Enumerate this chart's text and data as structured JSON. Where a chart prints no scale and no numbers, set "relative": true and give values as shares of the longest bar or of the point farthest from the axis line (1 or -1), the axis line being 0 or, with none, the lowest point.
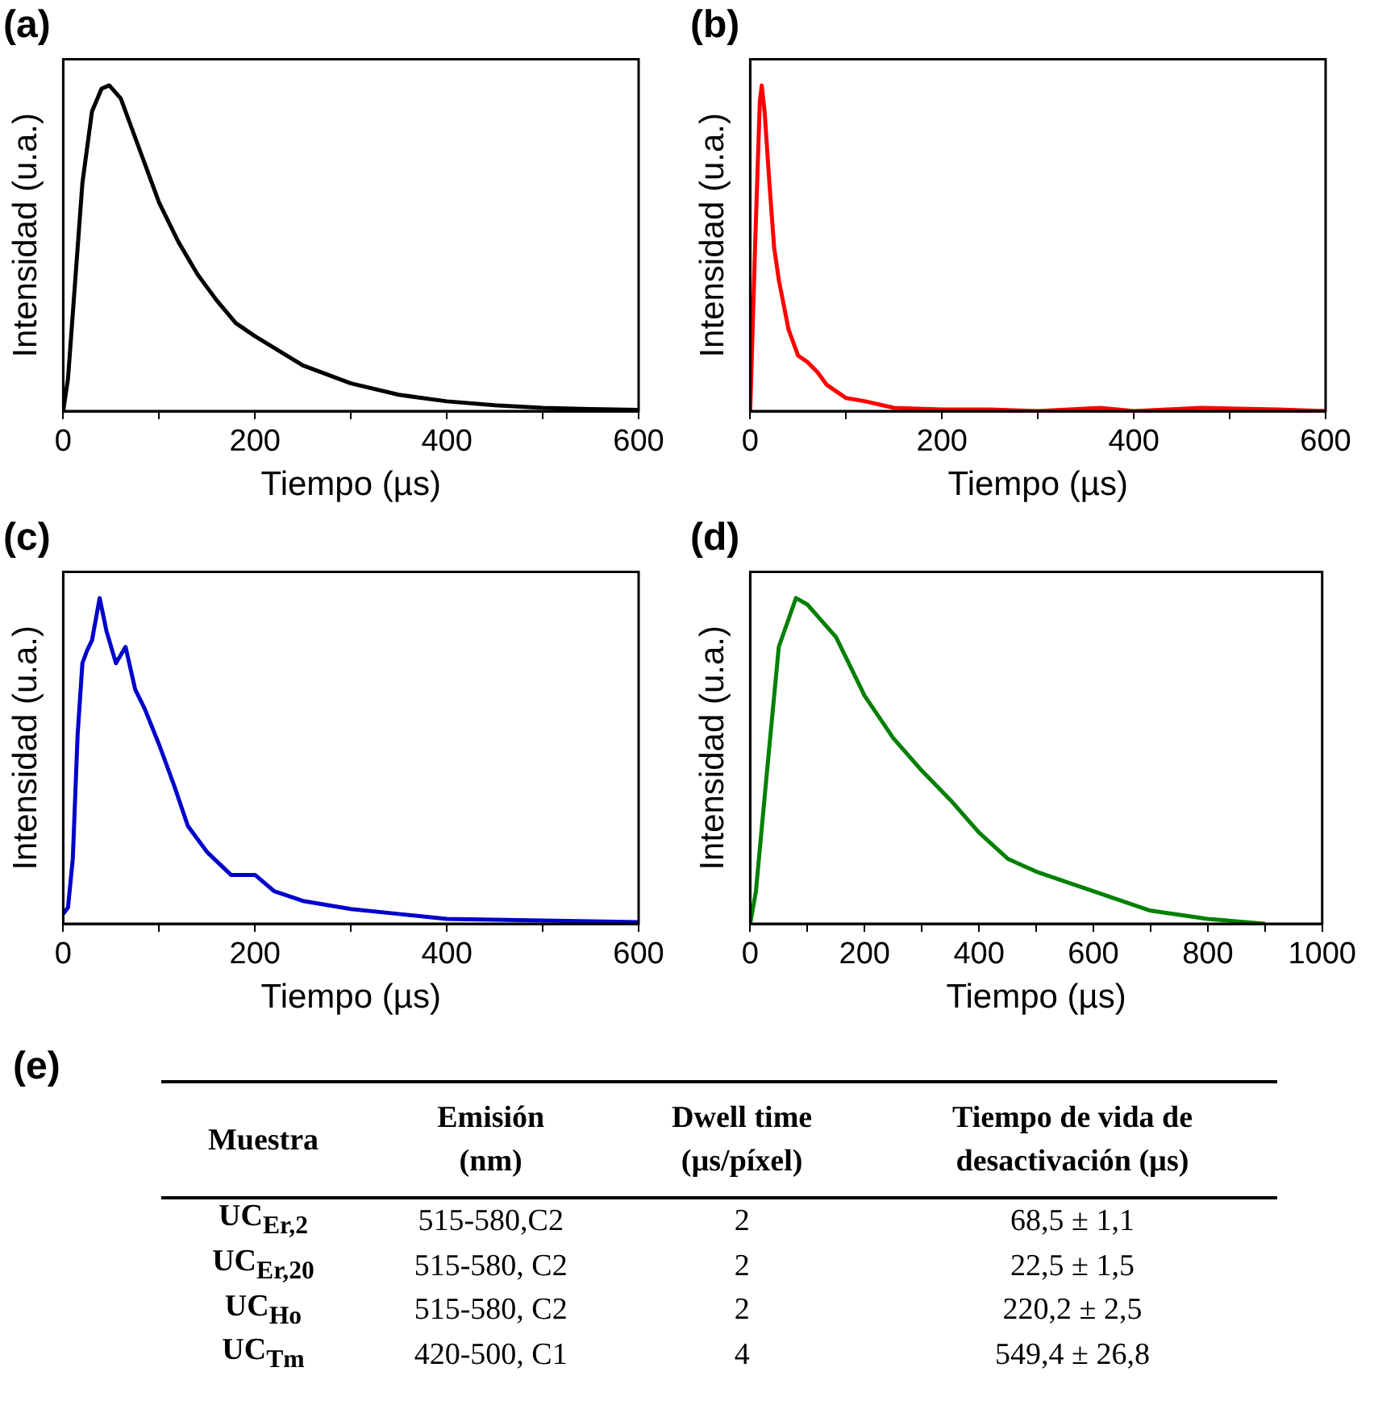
{
  "chart_data": [
    {
      "type": "line",
      "title": "(a)",
      "xlabel": "Tiempo (µs)",
      "ylabel": "Intensidad (u.a.)",
      "relative": true,
      "xlim": [
        0,
        600
      ],
      "xticks": [
        0,
        {
          "value": 100,
          "label": null
        },
        200,
        {
          "value": 300,
          "label": null
        },
        400,
        {
          "value": 500,
          "label": null
        },
        600
      ],
      "marker": "none",
      "grid": false,
      "legend": false,
      "series": [
        {
          "color": "#000000",
          "x": [
            0,
            5,
            10,
            20,
            30,
            40,
            48,
            60,
            80,
            100,
            120,
            140,
            160,
            180,
            200,
            250,
            300,
            350,
            400,
            450,
            500,
            550,
            600
          ],
          "values": [
            0,
            0.1,
            0.3,
            0.7,
            0.92,
            0.99,
            1,
            0.96,
            0.8,
            0.64,
            0.52,
            0.42,
            0.34,
            0.27,
            0.23,
            0.14,
            0.085,
            0.05,
            0.03,
            0.018,
            0.01,
            0.006,
            0.004
          ]
        }
      ]
    },
    {
      "type": "line",
      "title": "(b)",
      "xlabel": "Tiempo (µs)",
      "ylabel": "Intensidad (u.a.)",
      "relative": true,
      "xlim": [
        0,
        600
      ],
      "xticks": [
        0,
        {
          "value": 100,
          "label": null
        },
        200,
        {
          "value": 300,
          "label": null
        },
        400,
        {
          "value": 500,
          "label": null
        },
        600
      ],
      "marker": "none",
      "grid": false,
      "legend": false,
      "series": [
        {
          "color": "#ff0000",
          "x": [
            0,
            5,
            10,
            12,
            15,
            20,
            25,
            30,
            40,
            50,
            60,
            70,
            80,
            100,
            120,
            150,
            200,
            250,
            300,
            365,
            400,
            470,
            550,
            600
          ],
          "values": [
            0,
            0.5,
            0.95,
            1,
            0.92,
            0.7,
            0.5,
            0.4,
            0.25,
            0.17,
            0.15,
            0.12,
            0.08,
            0.04,
            0.03,
            0.01,
            0.005,
            0.005,
            0,
            0.01,
            0,
            0.01,
            0.005,
            0
          ]
        }
      ]
    },
    {
      "type": "line",
      "title": "(c)",
      "xlabel": "Tiempo (µs)",
      "ylabel": "Intensidad (u.a.)",
      "relative": true,
      "xlim": [
        0,
        600
      ],
      "xticks": [
        0,
        {
          "value": 100,
          "label": null
        },
        200,
        {
          "value": 300,
          "label": null
        },
        400,
        {
          "value": 500,
          "label": null
        },
        600
      ],
      "marker": "none",
      "grid": false,
      "legend": false,
      "series": [
        {
          "color": "#0000cc",
          "x": [
            0,
            5,
            10,
            15,
            20,
            25,
            30,
            38,
            45,
            55,
            65,
            75,
            85,
            100,
            115,
            130,
            150,
            175,
            200,
            220,
            250,
            300,
            350,
            400,
            500,
            600
          ],
          "values": [
            0.03,
            0.05,
            0.2,
            0.58,
            0.8,
            0.84,
            0.87,
            1,
            0.9,
            0.8,
            0.85,
            0.72,
            0.66,
            0.55,
            0.43,
            0.3,
            0.22,
            0.15,
            0.15,
            0.1,
            0.07,
            0.045,
            0.03,
            0.015,
            0.01,
            0.005
          ]
        }
      ]
    },
    {
      "type": "line",
      "title": "(d)",
      "xlabel": "Tiempo (µs)",
      "ylabel": "Intensidad (u.a.)",
      "relative": true,
      "xlim": [
        0,
        1000
      ],
      "xticks": [
        0,
        {
          "value": 100,
          "label": null
        },
        200,
        {
          "value": 300,
          "label": null
        },
        400,
        {
          "value": 500,
          "label": null
        },
        600,
        {
          "value": 700,
          "label": null
        },
        800,
        {
          "value": 900,
          "label": null
        },
        1000
      ],
      "marker": "none",
      "grid": false,
      "legend": false,
      "series": [
        {
          "color": "#008000",
          "x": [
            0,
            10,
            30,
            50,
            80,
            100,
            150,
            200,
            250,
            300,
            350,
            400,
            450,
            500,
            600,
            700,
            800,
            900
          ],
          "values": [
            0,
            0.1,
            0.48,
            0.85,
            1,
            0.98,
            0.88,
            0.7,
            0.57,
            0.47,
            0.38,
            0.28,
            0.2,
            0.16,
            0.1,
            0.04,
            0.015,
            0
          ]
        }
      ]
    },
    {
      "type": "other",
      "title": "(e)",
      "categories": [
        "Muestra",
        "Emisión (nm)",
        "Dwell time (µs/píxel)",
        "Tiempo de vida de desactivación (µs)"
      ],
      "annotations": [
        "UC$_{Er,2}$",
        "515-580,C2",
        "2",
        "68,5 ± 1,1",
        "UC$_{Er,20}$",
        "515-580, C2",
        "2",
        "22,5 ± 1,5",
        "UC$_{Ho}$",
        "515-580, C2",
        "2",
        "220,2 ± 2,5",
        "UC$_{Tm}$",
        "420-500, C1",
        "4",
        "549,4 ± 26,8"
      ]
    }
  ]
}
